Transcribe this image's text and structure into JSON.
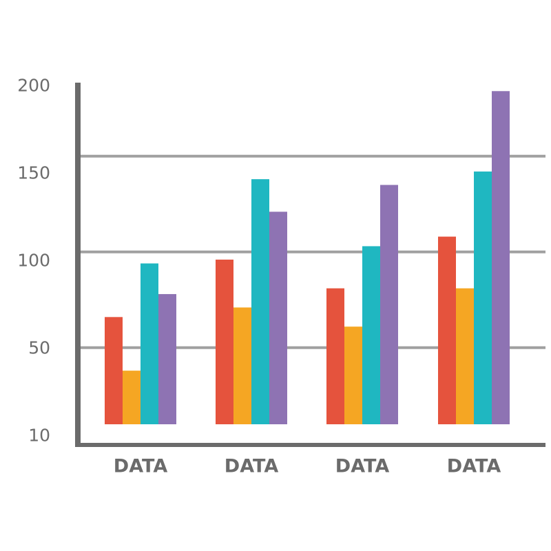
{
  "chart_data": {
    "type": "bar",
    "categories": [
      "DATA",
      "DATA",
      "DATA",
      "DATA"
    ],
    "series": [
      {
        "color": "#e5533d",
        "values": [
          66,
          96,
          81,
          108
        ]
      },
      {
        "color": "#f5a623",
        "values": [
          38,
          71,
          61,
          81
        ]
      },
      {
        "color": "#1fb7c1",
        "values": [
          94,
          138,
          103,
          142
        ]
      },
      {
        "color": "#8e73b3",
        "values": [
          78,
          121,
          135,
          184
        ]
      }
    ],
    "yticks": [
      "200",
      "150",
      "100",
      "50",
      "10"
    ],
    "grid_values": [
      50,
      100,
      150
    ],
    "ylim": [
      10,
      200
    ],
    "title": "",
    "xlabel": "",
    "ylabel": "",
    "grid": true,
    "legend": "none"
  },
  "colors": {
    "axis": "#6b6b6b",
    "grid": "#a0a0a0",
    "text": "#6b6b6b"
  }
}
